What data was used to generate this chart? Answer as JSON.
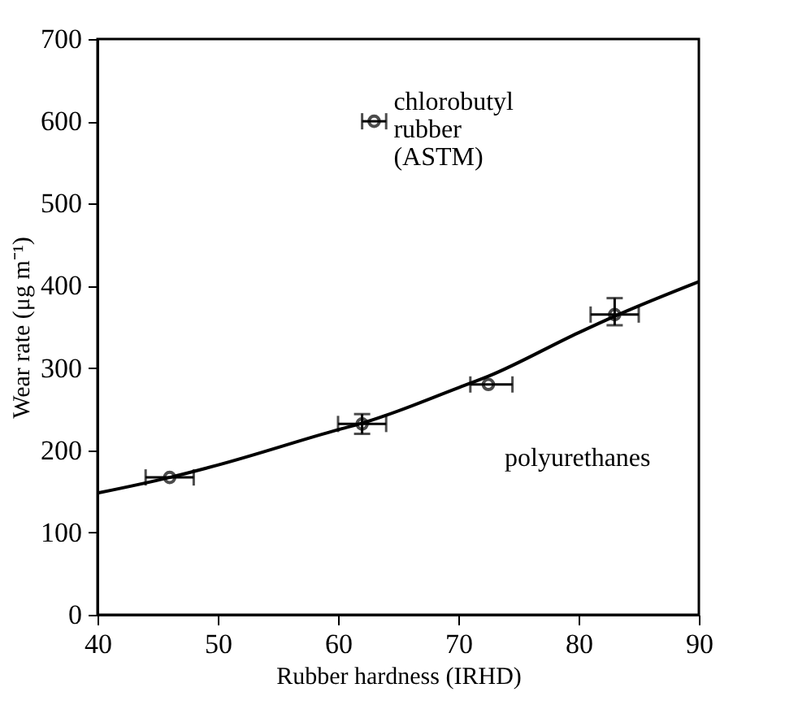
{
  "chart_data": {
    "type": "scatter",
    "xlabel": "Rubber hardness (IRHD)",
    "ylabel": "Wear rate (μg m⁻¹)",
    "xlim": [
      40,
      90
    ],
    "ylim": [
      0,
      700
    ],
    "xticks": [
      40,
      50,
      60,
      70,
      80,
      90
    ],
    "yticks": [
      0,
      100,
      200,
      300,
      400,
      500,
      600,
      700
    ],
    "grid": false,
    "series": [
      {
        "name": "polyurethanes",
        "marker": "circle",
        "color": "#000000",
        "x": [
          46,
          62,
          72.5,
          83
        ],
        "values": [
          167,
          232,
          280,
          365
        ],
        "xerrors": [
          2,
          2,
          [
            71,
            74.5
          ],
          2
        ],
        "errors": [
          null,
          12,
          null,
          [
            352,
            385
          ]
        ]
      },
      {
        "name": "chlorobutyl rubber (ASTM)",
        "marker": "circle",
        "color": "#000000",
        "x": [
          63
        ],
        "values": [
          600
        ],
        "xerrors": [
          1
        ],
        "errors": [
          null
        ]
      },
      {
        "type": "line",
        "color": "#000000",
        "line_style": "solid",
        "marker": "none",
        "x": [
          40,
          46,
          50,
          60,
          62,
          70,
          72.5,
          80,
          83,
          90
        ],
        "values": [
          148,
          167,
          182,
          225,
          233,
          276,
          290,
          343,
          363,
          405
        ]
      }
    ]
  }
}
